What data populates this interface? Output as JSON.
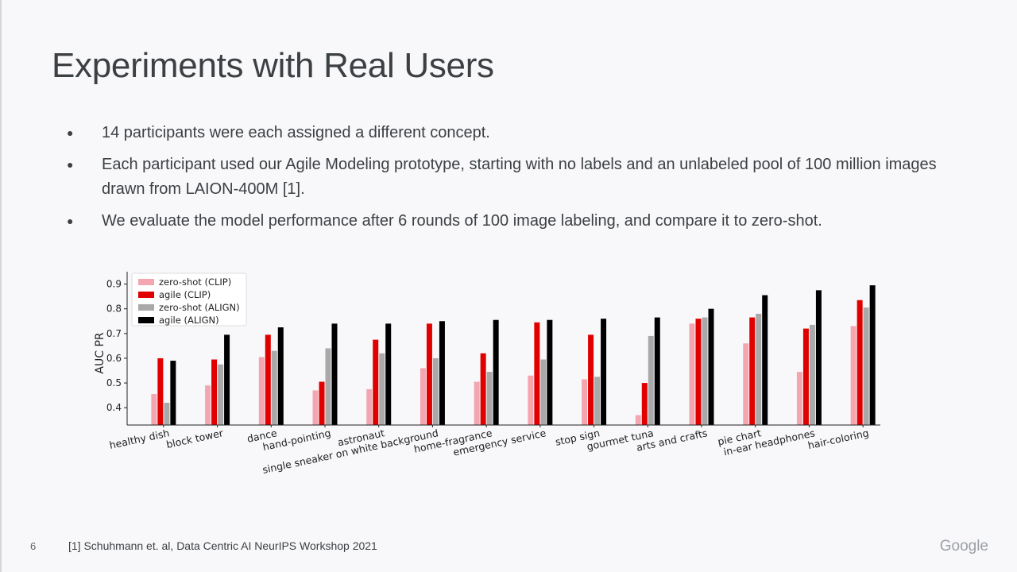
{
  "slide": {
    "title": "Experiments with Real Users",
    "bullets": [
      "14 participants were each assigned a different concept.",
      "Each participant used our Agile Modeling prototype, starting with no labels and an unlabeled pool of 100 million images drawn from LAION-400M [1].",
      "We evaluate the model performance after 6 rounds of 100 image labeling, and compare it to zero-shot."
    ],
    "bullet_glyph": "●",
    "footnote": "[1] Schuhmann et. al, Data Centric AI NeurIPS Workshop 2021",
    "page_number": "6",
    "logo": "Google"
  },
  "chart_data": {
    "type": "bar",
    "title": "",
    "xlabel": "",
    "ylabel": "AUC PR",
    "ylim": [
      0.33,
      0.95
    ],
    "yticks": [
      0.4,
      0.5,
      0.6,
      0.7,
      0.8,
      0.9
    ],
    "legend_position": "top-left",
    "grid": false,
    "categories": [
      "healthy dish",
      "block tower",
      "dance",
      "hand-pointing",
      "astronaut",
      "single sneaker on white background",
      "home-fragrance",
      "emergency service",
      "stop sign",
      "gourmet tuna",
      "arts and crafts",
      "pie chart",
      "in-ear headphones",
      "hair-coloring"
    ],
    "series": [
      {
        "name": "zero-shot (CLIP)",
        "color": "#f4a6b0",
        "values": [
          0.455,
          0.49,
          0.605,
          0.47,
          0.475,
          0.56,
          0.505,
          0.53,
          0.515,
          0.37,
          0.74,
          0.66,
          0.545,
          0.73
        ]
      },
      {
        "name": "agile (CLIP)",
        "color": "#e00000",
        "values": [
          0.6,
          0.595,
          0.695,
          0.505,
          0.675,
          0.74,
          0.62,
          0.745,
          0.695,
          0.5,
          0.76,
          0.765,
          0.72,
          0.835
        ]
      },
      {
        "name": "zero-shot (ALIGN)",
        "color": "#a9a9a9",
        "values": [
          0.42,
          0.575,
          0.63,
          0.64,
          0.62,
          0.6,
          0.545,
          0.595,
          0.525,
          0.69,
          0.765,
          0.78,
          0.735,
          0.805
        ]
      },
      {
        "name": "agile (ALIGN)",
        "color": "#000000",
        "values": [
          0.59,
          0.695,
          0.725,
          0.74,
          0.74,
          0.75,
          0.755,
          0.755,
          0.76,
          0.765,
          0.8,
          0.855,
          0.875,
          0.895
        ]
      }
    ]
  }
}
